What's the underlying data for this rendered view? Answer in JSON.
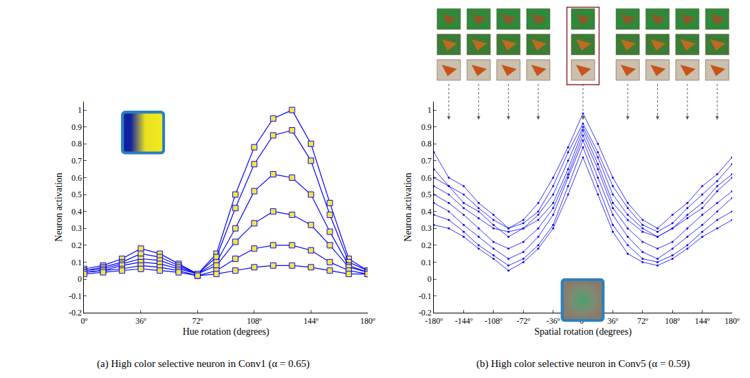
{
  "chart_data": [
    {
      "type": "line",
      "title": "(a) High color selective neuron in Conv1 (α = 0.65)",
      "x_label": "Hue rotation (degrees)",
      "y_label": "Neuron activation",
      "x": [
        0,
        12,
        24,
        36,
        48,
        60,
        72,
        84,
        96,
        108,
        120,
        132,
        144,
        156,
        168,
        180
      ],
      "series": [
        {
          "color": "#0000ff",
          "values": [
            0.06,
            0.08,
            0.12,
            0.18,
            0.15,
            0.09,
            0.03,
            0.15,
            0.5,
            0.78,
            0.95,
            1.0,
            0.8,
            0.45,
            0.12,
            0.05
          ]
        },
        {
          "color": "#0000ff",
          "values": [
            0.05,
            0.07,
            0.1,
            0.15,
            0.13,
            0.08,
            0.03,
            0.13,
            0.42,
            0.68,
            0.85,
            0.88,
            0.7,
            0.38,
            0.1,
            0.05
          ]
        },
        {
          "color": "#0000ff",
          "values": [
            0.05,
            0.06,
            0.09,
            0.12,
            0.11,
            0.07,
            0.03,
            0.1,
            0.3,
            0.52,
            0.62,
            0.6,
            0.5,
            0.28,
            0.08,
            0.04
          ]
        },
        {
          "color": "#0000ff",
          "values": [
            0.04,
            0.05,
            0.08,
            0.1,
            0.09,
            0.06,
            0.03,
            0.08,
            0.22,
            0.33,
            0.4,
            0.38,
            0.32,
            0.2,
            0.07,
            0.04
          ]
        },
        {
          "color": "#0000ff",
          "values": [
            0.04,
            0.05,
            0.06,
            0.08,
            0.07,
            0.05,
            0.02,
            0.05,
            0.12,
            0.18,
            0.2,
            0.2,
            0.17,
            0.1,
            0.05,
            0.03
          ]
        },
        {
          "color": "#0000ff",
          "values": [
            0.03,
            0.04,
            0.05,
            0.06,
            0.05,
            0.04,
            0.02,
            0.03,
            0.05,
            0.07,
            0.08,
            0.08,
            0.07,
            0.05,
            0.03,
            0.03
          ]
        }
      ],
      "xlim": [
        0,
        180
      ],
      "xticks": [
        {
          "value": 0,
          "label": "0º"
        },
        {
          "value": 36,
          "label": "36º"
        },
        {
          "value": 72,
          "label": "72º"
        },
        {
          "value": 108,
          "label": "108º"
        },
        {
          "value": 144,
          "label": "144º"
        },
        {
          "value": 180,
          "label": "180º"
        }
      ],
      "ylim": [
        -0.2,
        1.05
      ],
      "yticks": [
        -0.2,
        -0.1,
        0,
        0.1,
        0.2,
        0.3,
        0.4,
        0.5,
        0.6,
        0.7,
        0.8,
        0.9,
        1
      ],
      "grid": false,
      "marker": "square",
      "line_style": "solid"
    },
    {
      "type": "line",
      "title": "(b) High color selective neuron in Conv5 (α = 0.59)",
      "x_label": "Spatial rotation (degrees)",
      "y_label": "Neuron activation",
      "x": [
        -180,
        -162,
        -144,
        -126,
        -108,
        -90,
        -72,
        -54,
        -36,
        -18,
        0,
        18,
        36,
        54,
        72,
        90,
        108,
        126,
        144,
        162,
        180
      ],
      "series": [
        {
          "color": "#0000ff",
          "values": [
            0.75,
            0.6,
            0.55,
            0.45,
            0.38,
            0.3,
            0.35,
            0.45,
            0.6,
            0.78,
            0.98,
            0.8,
            0.6,
            0.45,
            0.35,
            0.3,
            0.38,
            0.45,
            0.55,
            0.62,
            0.72
          ]
        },
        {
          "color": "#0000ff",
          "values": [
            0.6,
            0.55,
            0.45,
            0.4,
            0.32,
            0.25,
            0.3,
            0.38,
            0.5,
            0.7,
            0.9,
            0.72,
            0.5,
            0.38,
            0.3,
            0.25,
            0.3,
            0.38,
            0.45,
            0.55,
            0.62
          ]
        },
        {
          "color": "#0000ff",
          "values": [
            0.5,
            0.45,
            0.38,
            0.3,
            0.22,
            0.18,
            0.22,
            0.3,
            0.42,
            0.62,
            0.85,
            0.65,
            0.42,
            0.3,
            0.22,
            0.18,
            0.22,
            0.3,
            0.38,
            0.45,
            0.52
          ]
        },
        {
          "color": "#0000ff",
          "values": [
            0.45,
            0.4,
            0.32,
            0.25,
            0.18,
            0.12,
            0.16,
            0.25,
            0.38,
            0.6,
            0.82,
            0.6,
            0.38,
            0.25,
            0.16,
            0.12,
            0.18,
            0.25,
            0.32,
            0.4,
            0.48
          ]
        },
        {
          "color": "#0000ff",
          "values": [
            0.38,
            0.35,
            0.28,
            0.2,
            0.14,
            0.08,
            0.12,
            0.2,
            0.32,
            0.55,
            0.78,
            0.55,
            0.32,
            0.2,
            0.12,
            0.1,
            0.14,
            0.2,
            0.28,
            0.35,
            0.4
          ]
        },
        {
          "color": "#0000ff",
          "values": [
            0.32,
            0.3,
            0.25,
            0.18,
            0.12,
            0.05,
            0.1,
            0.18,
            0.3,
            0.5,
            0.72,
            0.5,
            0.28,
            0.15,
            0.1,
            0.08,
            0.12,
            0.18,
            0.25,
            0.3,
            0.35
          ]
        },
        {
          "color": "#0000ff",
          "values": [
            0.55,
            0.5,
            0.42,
            0.36,
            0.3,
            0.28,
            0.3,
            0.35,
            0.45,
            0.65,
            0.88,
            0.68,
            0.45,
            0.35,
            0.28,
            0.25,
            0.3,
            0.36,
            0.42,
            0.52,
            0.6
          ]
        },
        {
          "color": "#0000ff",
          "values": [
            0.65,
            0.55,
            0.5,
            0.42,
            0.35,
            0.3,
            0.33,
            0.4,
            0.55,
            0.75,
            0.92,
            0.75,
            0.55,
            0.42,
            0.32,
            0.28,
            0.33,
            0.42,
            0.5,
            0.58,
            0.68
          ]
        }
      ],
      "xlim": [
        -180,
        180
      ],
      "xticks": [
        {
          "value": -180,
          "label": "-180º"
        },
        {
          "value": -144,
          "label": "-144º"
        },
        {
          "value": -108,
          "label": "-108º"
        },
        {
          "value": -72,
          "label": "-72º"
        },
        {
          "value": -36,
          "label": "-36º"
        },
        {
          "value": 0,
          "label": "0º"
        },
        {
          "value": 36,
          "label": "36º"
        },
        {
          "value": 72,
          "label": "72º"
        },
        {
          "value": 108,
          "label": "108º"
        },
        {
          "value": 144,
          "label": "144º"
        },
        {
          "value": 180,
          "label": "180º"
        }
      ],
      "ylim": [
        -0.2,
        1.05
      ],
      "yticks": [
        -0.2,
        -0.1,
        0,
        0.1,
        0.2,
        0.3,
        0.4,
        0.5,
        0.6,
        0.7,
        0.8,
        0.9,
        1
      ],
      "grid": false,
      "marker": "circle",
      "line_style": "solid"
    }
  ]
}
